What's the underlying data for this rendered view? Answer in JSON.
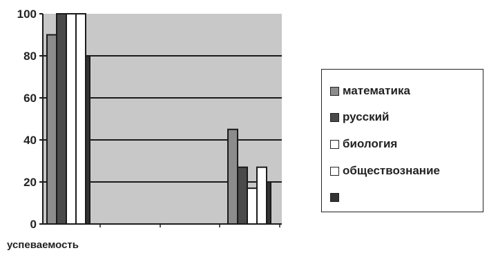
{
  "chart_data": {
    "type": "bar",
    "title": "",
    "xlabel": "",
    "ylabel": "",
    "ylim": [
      0,
      100
    ],
    "yticks": [
      "0",
      "20",
      "40",
      "60",
      "80",
      "100"
    ],
    "grid": true,
    "legend_position": "right",
    "categories": [
      "успеваемость",
      ""
    ],
    "series": [
      {
        "name": "математика",
        "values": [
          90,
          45
        ],
        "color": "#8c8c8c"
      },
      {
        "name": "русский",
        "values": [
          100,
          27
        ],
        "color": "#4a4a4a"
      },
      {
        "name": "биология",
        "values": [
          100,
          17
        ],
        "color": "#ffffff"
      },
      {
        "name": "обществознание",
        "values": [
          100,
          27
        ],
        "color": "#ffffff"
      },
      {
        "name": "",
        "values": [
          80,
          20
        ],
        "color": "#333333"
      }
    ]
  }
}
